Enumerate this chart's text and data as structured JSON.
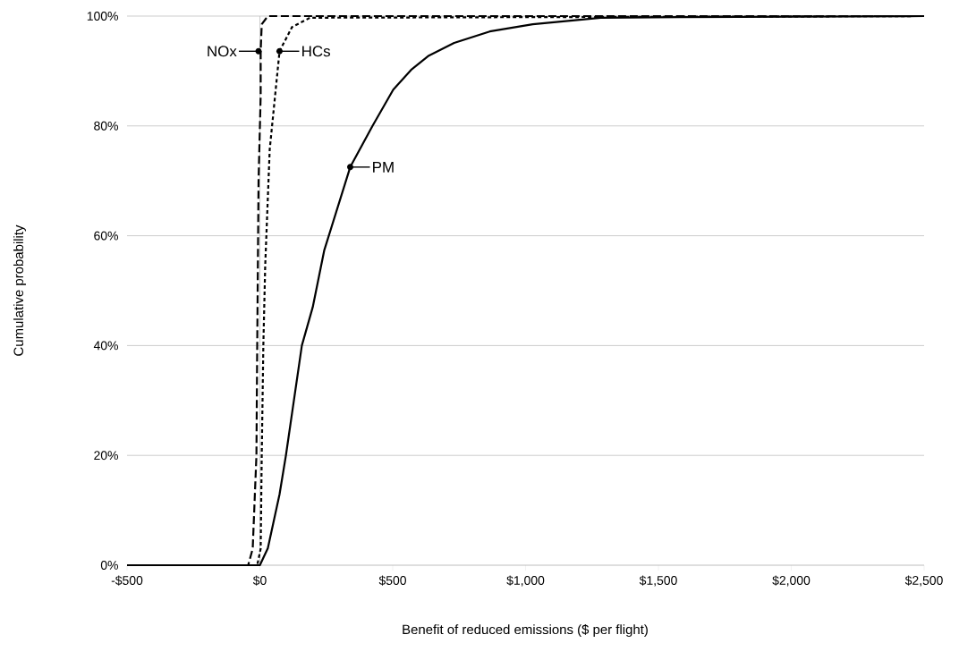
{
  "chart_data": {
    "type": "line",
    "xlabel": "Benefit of reduced emissions ($ per flight)",
    "ylabel": "Cumulative probability",
    "xlim": [
      -500,
      2500
    ],
    "ylim": [
      0,
      100
    ],
    "xticks": [
      {
        "value": -500,
        "label": "-$500"
      },
      {
        "value": 0,
        "label": "$0"
      },
      {
        "value": 500,
        "label": "$500"
      },
      {
        "value": 1000,
        "label": "$1,000"
      },
      {
        "value": 1500,
        "label": "$1,500"
      },
      {
        "value": 2000,
        "label": "$2,000"
      },
      {
        "value": 2500,
        "label": "$2,500"
      }
    ],
    "yticks": [
      {
        "value": 0,
        "label": "0%"
      },
      {
        "value": 20,
        "label": "20%"
      },
      {
        "value": 40,
        "label": "40%"
      },
      {
        "value": 60,
        "label": "60%"
      },
      {
        "value": 80,
        "label": "80%"
      },
      {
        "value": 100,
        "label": "100%"
      }
    ],
    "grid": "y",
    "ref_lines": [
      {
        "axis": "x",
        "value": 0,
        "color": "#bfbfbf"
      }
    ],
    "series": [
      {
        "color": "#000000",
        "line_style": "dashed",
        "x": [
          -500,
          -44,
          -27,
          -13,
          -10,
          -5,
          3,
          3,
          7,
          30,
          2500
        ],
        "values": [
          0,
          0,
          3,
          20,
          40,
          70,
          85.5,
          93.6,
          98.5,
          100,
          100
        ]
      },
      {
        "color": "#000000",
        "line_style": "dotted",
        "x": [
          -500,
          -10,
          3,
          7,
          13,
          20,
          37,
          74,
          121,
          189,
          2500
        ],
        "values": [
          0,
          0,
          3,
          20,
          40,
          54.5,
          75.7,
          93.6,
          98,
          99.7,
          100
        ]
      },
      {
        "color": "#000000",
        "line_style": "solid",
        "x": [
          -500,
          0,
          30,
          74,
          98,
          158,
          199,
          242,
          340,
          424,
          502,
          569,
          636,
          731,
          865,
          1027,
          1283,
          1579,
          2500
        ],
        "values": [
          0,
          0,
          3.1,
          12.9,
          20,
          40,
          47,
          57.3,
          72.5,
          80,
          86.6,
          90.2,
          92.8,
          95.1,
          97.2,
          98.5,
          99.7,
          99.8,
          100
        ]
      }
    ],
    "annotations": [
      {
        "text": "NOx",
        "x": -5,
        "y": 93.6
      },
      {
        "text": "HCs",
        "x": 74,
        "y": 93.6
      },
      {
        "text": "PM",
        "x": 340,
        "y": 72.5
      }
    ]
  }
}
